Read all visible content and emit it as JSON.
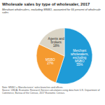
{
  "chart_data": {
    "type": "pie",
    "title": "Wholesale sales by type of wholesaler, 2017",
    "subtitle": "Merchant wholesalers, excluding MSBO, accounted for 55 percent of wholesale sales",
    "categories": [
      "Merchant wholesalers, excluding MSBO",
      "MSBO",
      "Agents and brokers"
    ],
    "values": [
      55,
      27,
      18
    ],
    "value_labels": [
      "55%",
      "27%",
      "18%"
    ],
    "colors": [
      "#1f9bd7",
      "#f59a2f",
      "#dbd5c6"
    ],
    "data_labels": true,
    "annotations": [
      "Note: MSBO = Manufacturers' sales branches and offices.",
      "Source: USDA, Economic Research Service calculations using data from U.S. Department of Commerce, Bureau of the Census, 2017 Economic Census."
    ]
  }
}
